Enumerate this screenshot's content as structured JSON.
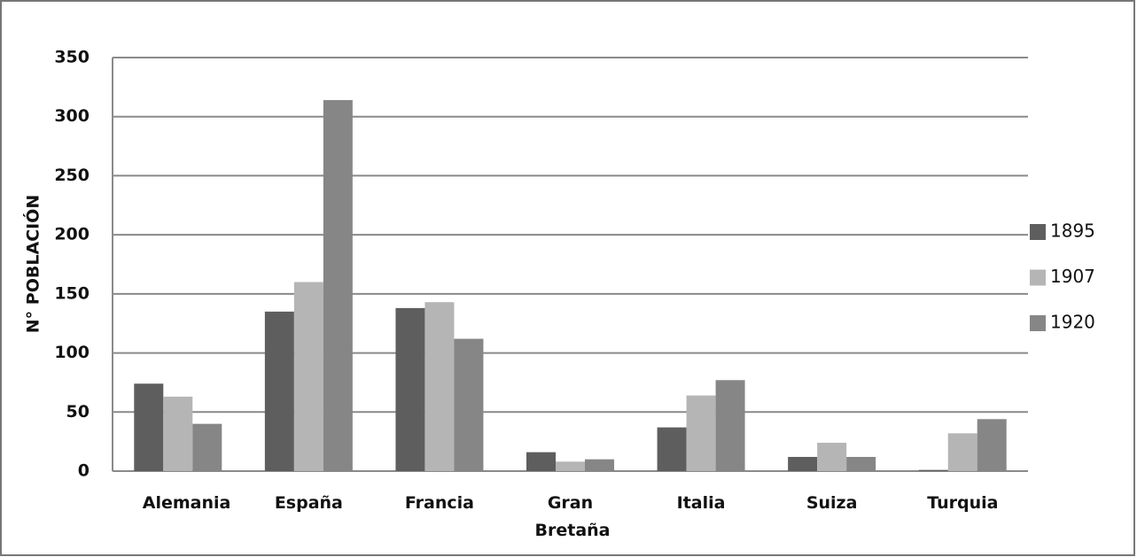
{
  "chart_data": {
    "type": "bar",
    "y_axis_label": "N° POBLACIÓN",
    "categories": [
      "Alemania",
      "España",
      "Francia",
      "Gran Bretaña",
      "Italia",
      "Suiza",
      "Turquia"
    ],
    "series": [
      {
        "name": "1895",
        "color": "#5e5e5e",
        "values": [
          74,
          135,
          138,
          16,
          37,
          12,
          1
        ]
      },
      {
        "name": "1907",
        "color": "#b5b5b5",
        "values": [
          63,
          160,
          143,
          8,
          64,
          24,
          32
        ]
      },
      {
        "name": "1920",
        "color": "#868686",
        "values": [
          40,
          314,
          112,
          10,
          77,
          12,
          44
        ]
      }
    ],
    "ylim": [
      0,
      350
    ],
    "yticks": [
      0,
      50,
      100,
      150,
      200,
      250,
      300,
      350
    ],
    "grid": true,
    "legend": "right"
  }
}
